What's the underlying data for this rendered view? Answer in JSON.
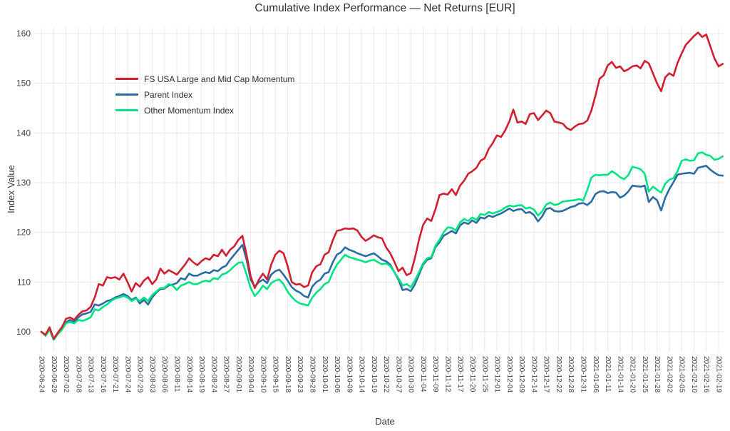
{
  "chart_data": {
    "type": "line",
    "title": "Cumulative Index Performance — Net Returns [EUR]",
    "xlabel": "Date",
    "ylabel": "Index Value",
    "y_ticks": [
      100,
      110,
      120,
      130,
      140,
      150,
      160
    ],
    "ylim": [
      96.1,
      161.3
    ],
    "grid": true,
    "legend_position": "top-left-inside",
    "x_tick_every": 3,
    "colors": {
      "grid": "#e9e9e9",
      "tick_text": "#424242"
    },
    "x": [
      "2020-06-24",
      "2020-06-25",
      "2020-06-26",
      "2020-06-29",
      "2020-06-30",
      "2020-07-01",
      "2020-07-02",
      "2020-07-06",
      "2020-07-07",
      "2020-07-08",
      "2020-07-09",
      "2020-07-10",
      "2020-07-13",
      "2020-07-14",
      "2020-07-15",
      "2020-07-16",
      "2020-07-17",
      "2020-07-20",
      "2020-07-21",
      "2020-07-22",
      "2020-07-23",
      "2020-07-24",
      "2020-07-27",
      "2020-07-28",
      "2020-07-29",
      "2020-07-30",
      "2020-07-31",
      "2020-08-03",
      "2020-08-04",
      "2020-08-05",
      "2020-08-06",
      "2020-08-07",
      "2020-08-10",
      "2020-08-11",
      "2020-08-12",
      "2020-08-13",
      "2020-08-14",
      "2020-08-17",
      "2020-08-18",
      "2020-08-19",
      "2020-08-20",
      "2020-08-21",
      "2020-08-24",
      "2020-08-25",
      "2020-08-26",
      "2020-08-27",
      "2020-08-28",
      "2020-08-31",
      "2020-09-01",
      "2020-09-02",
      "2020-09-03",
      "2020-09-04",
      "2020-09-08",
      "2020-09-09",
      "2020-09-10",
      "2020-09-11",
      "2020-09-14",
      "2020-09-15",
      "2020-09-16",
      "2020-09-17",
      "2020-09-18",
      "2020-09-21",
      "2020-09-22",
      "2020-09-23",
      "2020-09-24",
      "2020-09-25",
      "2020-09-28",
      "2020-09-29",
      "2020-09-30",
      "2020-10-01",
      "2020-10-02",
      "2020-10-05",
      "2020-10-06",
      "2020-10-07",
      "2020-10-08",
      "2020-10-09",
      "2020-10-12",
      "2020-10-13",
      "2020-10-14",
      "2020-10-15",
      "2020-10-16",
      "2020-10-19",
      "2020-10-20",
      "2020-10-21",
      "2020-10-22",
      "2020-10-23",
      "2020-10-26",
      "2020-10-27",
      "2020-10-28",
      "2020-10-29",
      "2020-10-30",
      "2020-11-02",
      "2020-11-03",
      "2020-11-04",
      "2020-11-05",
      "2020-11-06",
      "2020-11-09",
      "2020-11-10",
      "2020-11-11",
      "2020-11-12",
      "2020-11-13",
      "2020-11-16",
      "2020-11-17",
      "2020-11-18",
      "2020-11-19",
      "2020-11-20",
      "2020-11-23",
      "2020-11-24",
      "2020-11-25",
      "2020-11-27",
      "2020-11-30",
      "2020-12-01",
      "2020-12-02",
      "2020-12-03",
      "2020-12-04",
      "2020-12-07",
      "2020-12-08",
      "2020-12-09",
      "2020-12-10",
      "2020-12-11",
      "2020-12-14",
      "2020-12-15",
      "2020-12-16",
      "2020-12-17",
      "2020-12-18",
      "2020-12-21",
      "2020-12-22",
      "2020-12-23",
      "2020-12-24",
      "2020-12-28",
      "2020-12-29",
      "2020-12-30",
      "2020-12-31",
      "2021-01-04",
      "2021-01-05",
      "2021-01-06",
      "2021-01-07",
      "2021-01-08",
      "2021-01-11",
      "2021-01-12",
      "2021-01-13",
      "2021-01-14",
      "2021-01-15",
      "2021-01-19",
      "2021-01-20",
      "2021-01-21",
      "2021-01-22",
      "2021-01-25",
      "2021-01-26",
      "2021-01-27",
      "2021-01-28",
      "2021-01-29",
      "2021-02-01",
      "2021-02-02",
      "2021-02-03",
      "2021-02-04",
      "2021-02-05",
      "2021-02-08",
      "2021-02-09",
      "2021-02-10",
      "2021-02-11",
      "2021-02-12",
      "2021-02-16",
      "2021-02-17",
      "2021-02-18",
      "2021-02-19",
      "2021-02-22"
    ],
    "series": [
      {
        "name": "FS USA Large and Mid Cap Momentum",
        "color": "#d21f2f",
        "values": [
          100,
          99.4,
          100.9,
          98.6,
          99.8,
          100.9,
          102.6,
          102.9,
          102.4,
          103.4,
          104.1,
          104.3,
          105,
          106.9,
          109.6,
          109.3,
          111,
          110.8,
          111,
          110.5,
          111.7,
          110,
          108.1,
          109.8,
          109.1,
          110.3,
          111,
          109.6,
          110.5,
          112.7,
          111.7,
          112.4,
          112,
          111.5,
          112.5,
          113.5,
          114.8,
          114,
          113.4,
          114.2,
          114.8,
          114.5,
          115.5,
          115.2,
          116.5,
          115.3,
          116.5,
          117.2,
          118.5,
          119.3,
          115.5,
          111.2,
          108.8,
          110.5,
          111.7,
          110.5,
          113.5,
          115.5,
          116.3,
          115.8,
          113.2,
          110,
          109.5,
          109.6,
          109,
          109.3,
          112,
          113.2,
          113.6,
          115.5,
          116,
          118.4,
          120.3,
          120.5,
          120.8,
          120.7,
          120.8,
          120.4,
          119.1,
          118.3,
          118.8,
          119.4,
          119,
          118.8,
          117,
          115.8,
          114.1,
          112.2,
          112.9,
          111.4,
          111.8,
          114.8,
          118.5,
          121.5,
          122.8,
          122.3,
          124.6,
          127.5,
          127.8,
          127.6,
          128.7,
          127.5,
          129.4,
          130.4,
          131.8,
          132.3,
          133,
          134.4,
          134.9,
          136.8,
          138,
          139.5,
          139.2,
          140.5,
          142.3,
          144.7,
          142.1,
          142.3,
          141.8,
          143.8,
          144,
          142.6,
          143.5,
          144.5,
          144,
          142.3,
          142.1,
          141.9,
          141,
          140.6,
          141.3,
          141.8,
          141.9,
          142.5,
          144.5,
          147.5,
          150.9,
          151.6,
          153.6,
          154.3,
          153.1,
          153.4,
          152.4,
          152.8,
          153.4,
          153.6,
          153,
          154.5,
          154,
          152,
          150,
          148.4,
          151.2,
          152,
          151.5,
          154.1,
          156,
          157.7,
          158.6,
          159.5,
          160.2,
          159.3,
          159.8,
          157.4,
          155,
          153.4,
          153.9
        ]
      },
      {
        "name": "Parent Index",
        "color": "#2b6ca5",
        "values": [
          100,
          99.3,
          100.6,
          98.5,
          99.7,
          100.6,
          101.9,
          102.4,
          102,
          102.9,
          103.5,
          103.7,
          104,
          105.5,
          105.3,
          105.7,
          106.2,
          106.4,
          106.9,
          107.2,
          107.6,
          107.2,
          106.4,
          106.9,
          105.7,
          106.4,
          105.5,
          106.9,
          107.9,
          108.6,
          108.7,
          109.3,
          109.5,
          109.8,
          110.8,
          110.5,
          111.7,
          111.3,
          111.3,
          111.7,
          112,
          111.8,
          112.4,
          112.2,
          112.9,
          113.3,
          114.5,
          115.5,
          116.5,
          117.5,
          114.5,
          110.5,
          109.1,
          110,
          110.5,
          109.8,
          111.5,
          112.2,
          112.5,
          111.5,
          110.3,
          109,
          108.3,
          107.9,
          107.2,
          106.9,
          109.1,
          110,
          110.5,
          111.7,
          112,
          114,
          115.5,
          116,
          117,
          116.5,
          116.2,
          115.8,
          115.5,
          115.2,
          115.5,
          115.8,
          115.2,
          114.5,
          114.2,
          113.5,
          112,
          110.5,
          108.4,
          108.6,
          108.2,
          109.5,
          111.5,
          113.5,
          114.5,
          114.8,
          117,
          118,
          119.3,
          119.8,
          120.3,
          119.8,
          121.4,
          122,
          121.7,
          122.4,
          121.9,
          123,
          122.8,
          123.4,
          123.1,
          123.5,
          123.8,
          124.3,
          124.8,
          124.3,
          124.6,
          124.7,
          123.9,
          124.1,
          123.5,
          122.2,
          123.2,
          124.7,
          124.9,
          124.3,
          124.2,
          124.3,
          124.7,
          125.1,
          125.3,
          125.8,
          125.9,
          125.5,
          126.2,
          127.7,
          128.2,
          128.3,
          127.9,
          128.1,
          128,
          127,
          127.4,
          128.2,
          129.4,
          129.3,
          129.2,
          129.4,
          126.1,
          127.1,
          126.5,
          124.4,
          127,
          128.7,
          130.1,
          131.6,
          131.8,
          131.9,
          132,
          131.8,
          133,
          133.2,
          133.4,
          132.6,
          132,
          131.5,
          131.4
        ]
      },
      {
        "name": "Other Momentum Index",
        "color": "#00e383",
        "values": [
          100,
          99.2,
          100.4,
          98.4,
          99.5,
          100.4,
          101.7,
          102,
          101.7,
          102.4,
          102.2,
          102.5,
          102.9,
          104.5,
          104.3,
          105,
          105.5,
          106.2,
          106.7,
          106.9,
          107.2,
          106.9,
          106.2,
          106.7,
          106.2,
          106.9,
          106.2,
          107.4,
          108.1,
          108.8,
          108.8,
          109.6,
          109.3,
          108.4,
          109.3,
          109.6,
          110,
          109.6,
          109.6,
          110,
          110.3,
          110.1,
          110.8,
          110.6,
          111.5,
          111.8,
          112.4,
          113.2,
          113.9,
          114,
          111.5,
          108.8,
          107.2,
          108.1,
          109.3,
          108.6,
          109.8,
          110.3,
          110.5,
          109.6,
          108.1,
          107,
          106.2,
          105.7,
          105.5,
          105.3,
          106.9,
          107.9,
          108.6,
          109.6,
          110,
          112,
          113.5,
          114.5,
          115.5,
          115,
          114.8,
          114.5,
          114.3,
          114,
          114.3,
          114.5,
          114,
          113.6,
          113.8,
          113.2,
          112,
          110.8,
          109.3,
          109.6,
          109,
          110.3,
          112,
          113.8,
          114.8,
          115,
          117.3,
          118.5,
          120,
          121,
          120.9,
          120.4,
          122,
          122.7,
          122.3,
          123,
          122.5,
          123.7,
          123.5,
          124.1,
          123.8,
          124.1,
          124.4,
          125,
          125.4,
          125.2,
          125.4,
          125.5,
          124.8,
          125,
          124.6,
          123.4,
          124.2,
          125.6,
          126,
          125.5,
          125.7,
          126.2,
          126.3,
          126.4,
          126.5,
          126.7,
          126.4,
          128.5,
          131,
          131.6,
          131.5,
          131.6,
          131.6,
          132.3,
          131.8,
          131.1,
          130.7,
          131.5,
          133.2,
          133,
          132.7,
          131.8,
          128.2,
          129.2,
          128.6,
          128,
          129.8,
          130.6,
          130.9,
          132.3,
          134.4,
          134.7,
          134.4,
          134.5,
          135.9,
          136.1,
          135.6,
          135.4,
          134.6,
          134.8,
          135.3
        ]
      }
    ]
  }
}
